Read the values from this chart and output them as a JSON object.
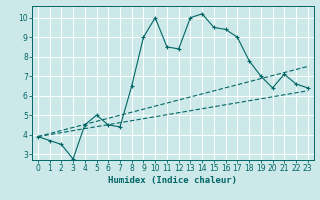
{
  "xlabel": "Humidex (Indice chaleur)",
  "xlim": [
    -0.5,
    23.5
  ],
  "ylim": [
    2.7,
    10.6
  ],
  "yticks": [
    3,
    4,
    5,
    6,
    7,
    8,
    9,
    10
  ],
  "xticks": [
    0,
    1,
    2,
    3,
    4,
    5,
    6,
    7,
    8,
    9,
    10,
    11,
    12,
    13,
    14,
    15,
    16,
    17,
    18,
    19,
    20,
    21,
    22,
    23
  ],
  "bg_color": "#cde8e8",
  "line_color": "#006666",
  "grid_color": "#b8d8d8",
  "line1_x": [
    0,
    1,
    2,
    3,
    4,
    5,
    6,
    7,
    8,
    9,
    10,
    11,
    12,
    13,
    14,
    15,
    16,
    17,
    18,
    19,
    20,
    21,
    22,
    23
  ],
  "line1_y": [
    3.9,
    3.7,
    3.5,
    2.75,
    4.5,
    5.0,
    4.5,
    4.4,
    6.5,
    9.0,
    10.0,
    8.5,
    8.4,
    10.0,
    10.2,
    9.5,
    9.4,
    9.0,
    7.8,
    7.0,
    6.4,
    7.1,
    6.6,
    6.4
  ],
  "line2_x": [
    0,
    23
  ],
  "line2_y": [
    3.9,
    7.5
  ],
  "line3_x": [
    0,
    23
  ],
  "line3_y": [
    3.9,
    6.25
  ]
}
